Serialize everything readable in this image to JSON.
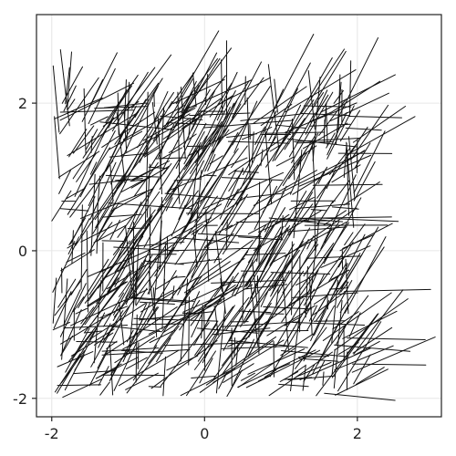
{
  "chart_data": {
    "type": "scatter",
    "mark": "line-segments",
    "title": "",
    "xlabel": "",
    "ylabel": "",
    "xlim": [
      -2.2,
      3.1
    ],
    "ylim": [
      -2.25,
      3.2
    ],
    "grid": true,
    "x_ticks": [
      -2,
      0,
      2
    ],
    "x_tick_labels": [
      "-2",
      "0",
      "2"
    ],
    "y_ticks": [
      -2,
      0,
      2
    ],
    "y_tick_labels": [
      "-2",
      "0",
      "2"
    ],
    "segment_count": 800,
    "x_start_range": [
      -2,
      2
    ],
    "y_start_range": [
      -2,
      2
    ],
    "length_range": [
      0.15,
      1.2
    ],
    "direction_mix": [
      {
        "angle_deg": 60,
        "share": 0.5
      },
      {
        "angle_deg": 30,
        "share": 0.2
      },
      {
        "angle_deg": 0,
        "share": 0.15
      },
      {
        "angle_deg": 90,
        "share": 0.15
      }
    ],
    "line_color": "#111111"
  }
}
